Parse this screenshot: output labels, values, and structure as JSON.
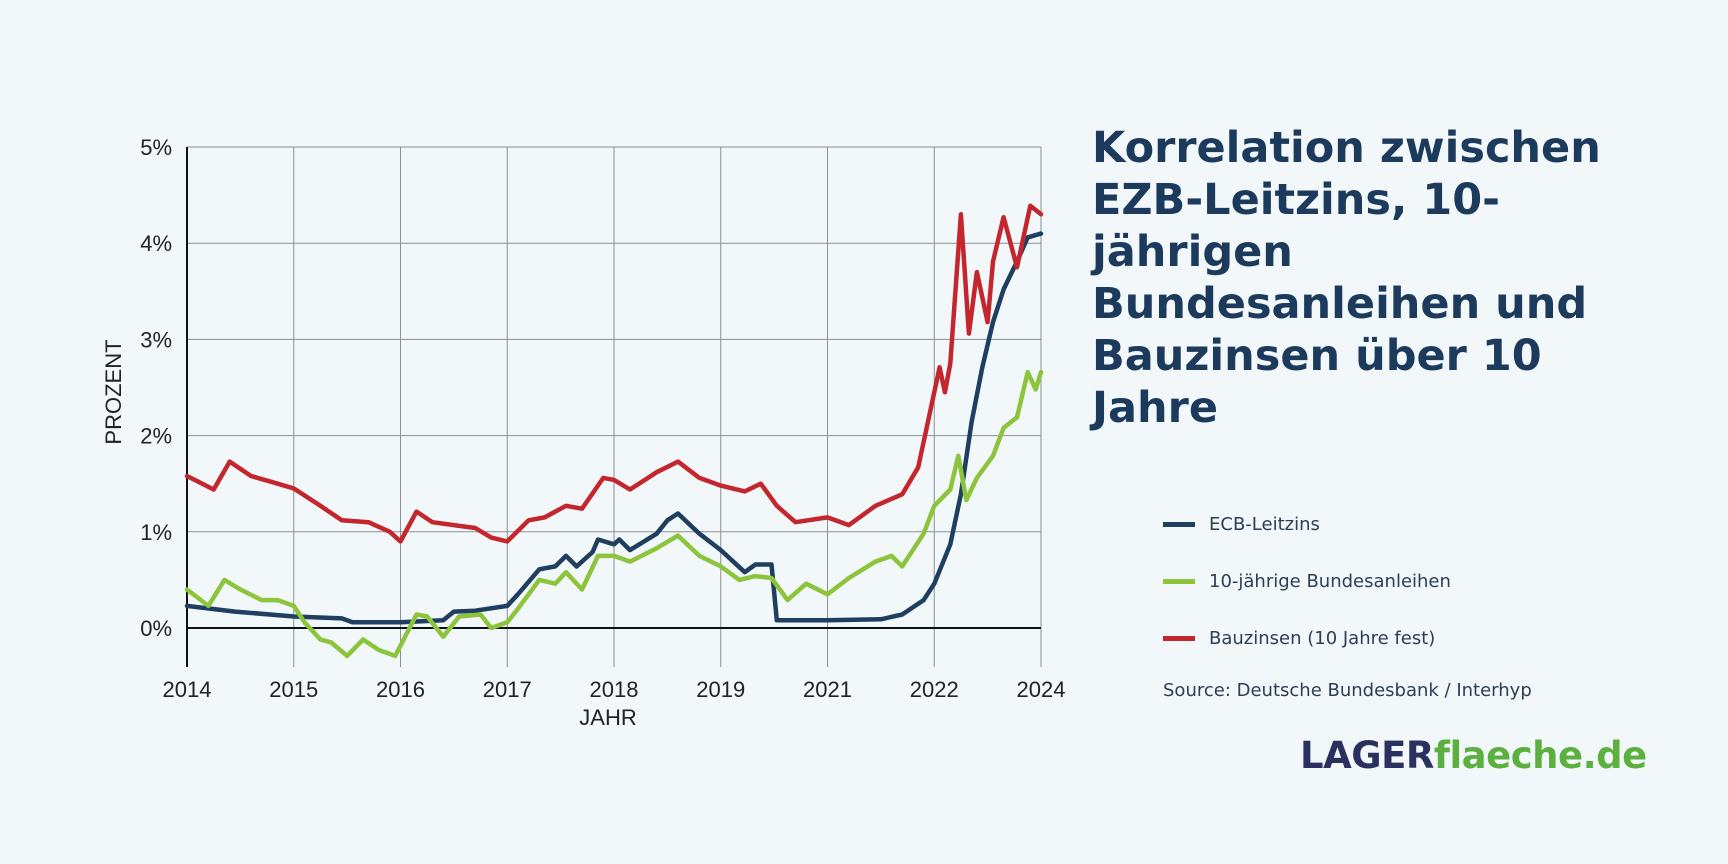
{
  "title": "Korrelation zwischen EZB-Leitzins, 10-jährigen Bundesanleihen und Bauzinsen  über 10 Jahre",
  "legend": [
    {
      "label": "ECB-Leitzins",
      "color": "#1e3f5f"
    },
    {
      "label": "10-jährige Bundesanleihen",
      "color": "#8cc43c"
    },
    {
      "label": "Bauzinsen (10 Jahre fest)",
      "color": "#c4262e"
    }
  ],
  "source": "Source: Deutsche Bundesbank / Interhyp",
  "logo": {
    "part1": "LAGER",
    "part2": "flaeche.de"
  },
  "chart_data": {
    "type": "line",
    "xlabel": "JAHR",
    "ylabel": "PROZENT",
    "x_ticks": [
      2014,
      2015,
      2016,
      2017,
      2018,
      2019,
      2021,
      2022,
      2024
    ],
    "y_ticks": [
      "0%",
      "1%",
      "2%",
      "3%",
      "4%",
      "5%"
    ],
    "ylim": [
      -0.4,
      5
    ],
    "grid": true,
    "legend_position": "right",
    "series": [
      {
        "name": "ECB-Leitzins",
        "color": "#1e3f5f",
        "x": [
          2014.0,
          2014.45,
          2015.0,
          2015.45,
          2015.55,
          2016.0,
          2016.4,
          2016.5,
          2016.7,
          2017.0,
          2017.1,
          2017.3,
          2017.45,
          2017.55,
          2017.65,
          2017.8,
          2017.85,
          2018.0,
          2018.05,
          2018.15,
          2018.4,
          2018.5,
          2018.6,
          2018.8,
          2019.0,
          2019.45,
          2019.65,
          2019.95,
          2020.05,
          2021.0,
          2021.5,
          2021.7,
          2021.9,
          2022.0,
          2022.3,
          2022.5,
          2022.7,
          2022.9,
          2023.1,
          2023.3,
          2023.55,
          2023.75,
          2024.0
        ],
        "y": [
          0.23,
          0.17,
          0.12,
          0.1,
          0.06,
          0.06,
          0.08,
          0.17,
          0.18,
          0.23,
          0.35,
          0.61,
          0.64,
          0.75,
          0.64,
          0.79,
          0.92,
          0.87,
          0.92,
          0.81,
          0.98,
          1.12,
          1.19,
          0.98,
          0.81,
          0.58,
          0.66,
          0.66,
          0.08,
          0.08,
          0.09,
          0.14,
          0.29,
          0.46,
          0.87,
          1.39,
          2.14,
          2.71,
          3.18,
          3.52,
          3.81,
          4.06,
          4.1
        ]
      },
      {
        "name": "10-jährige Bundesanleihen",
        "color": "#8cc43c",
        "x": [
          2014.0,
          2014.2,
          2014.35,
          2014.5,
          2014.7,
          2014.85,
          2015.0,
          2015.1,
          2015.25,
          2015.35,
          2015.5,
          2015.65,
          2015.8,
          2015.95,
          2016.15,
          2016.25,
          2016.4,
          2016.55,
          2016.75,
          2016.85,
          2017.0,
          2017.1,
          2017.3,
          2017.45,
          2017.55,
          2017.7,
          2017.85,
          2018.0,
          2018.15,
          2018.4,
          2018.6,
          2018.8,
          2019.0,
          2019.35,
          2019.65,
          2019.95,
          2020.25,
          2020.6,
          2021.0,
          2021.2,
          2021.45,
          2021.6,
          2021.7,
          2021.9,
          2022.0,
          2022.3,
          2022.45,
          2022.6,
          2022.8,
          2023.1,
          2023.3,
          2023.55,
          2023.75,
          2023.9,
          2024.0
        ],
        "y": [
          0.4,
          0.23,
          0.5,
          0.4,
          0.29,
          0.29,
          0.23,
          0.06,
          -0.12,
          -0.15,
          -0.29,
          -0.12,
          -0.23,
          -0.29,
          0.14,
          0.12,
          -0.09,
          0.12,
          0.14,
          0.0,
          0.06,
          0.2,
          0.5,
          0.46,
          0.58,
          0.4,
          0.75,
          0.75,
          0.69,
          0.83,
          0.96,
          0.75,
          0.64,
          0.5,
          0.54,
          0.52,
          0.29,
          0.46,
          0.35,
          0.52,
          0.69,
          0.75,
          0.64,
          0.98,
          1.27,
          1.44,
          1.79,
          1.33,
          1.56,
          1.79,
          2.08,
          2.19,
          2.66,
          2.48,
          2.66
        ]
      },
      {
        "name": "Bauzinsen (10 Jahre fest)",
        "color": "#c4262e",
        "x": [
          2014.0,
          2014.25,
          2014.4,
          2014.6,
          2014.85,
          2015.0,
          2015.25,
          2015.45,
          2015.7,
          2015.9,
          2016.0,
          2016.15,
          2016.3,
          2016.5,
          2016.7,
          2016.85,
          2017.0,
          2017.2,
          2017.35,
          2017.55,
          2017.7,
          2017.9,
          2018.0,
          2018.15,
          2018.4,
          2018.6,
          2018.8,
          2019.0,
          2019.45,
          2019.75,
          2020.05,
          2020.4,
          2021.0,
          2021.2,
          2021.45,
          2021.7,
          2021.85,
          2021.95,
          2022.1,
          2022.2,
          2022.3,
          2022.5,
          2022.65,
          2022.8,
          2023.0,
          2023.1,
          2023.3,
          2023.55,
          2023.8,
          2024.0
        ],
        "y": [
          1.58,
          1.44,
          1.73,
          1.58,
          1.5,
          1.45,
          1.27,
          1.12,
          1.1,
          1.0,
          0.9,
          1.21,
          1.1,
          1.07,
          1.04,
          0.94,
          0.9,
          1.12,
          1.15,
          1.27,
          1.24,
          1.56,
          1.54,
          1.44,
          1.62,
          1.73,
          1.56,
          1.48,
          1.42,
          1.5,
          1.27,
          1.1,
          1.15,
          1.07,
          1.27,
          1.39,
          1.67,
          2.19,
          2.71,
          2.45,
          2.75,
          4.3,
          3.06,
          3.7,
          3.18,
          3.81,
          4.27,
          3.75,
          4.39,
          4.3
        ]
      }
    ]
  }
}
